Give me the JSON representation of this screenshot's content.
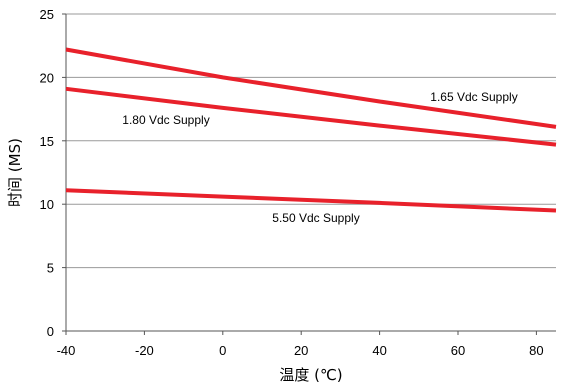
{
  "chart_data": {
    "type": "line",
    "title": "",
    "xlabel": "温度 (℃)",
    "ylabel": "时间 (MS)",
    "xlim": [
      -40,
      85
    ],
    "ylim": [
      0,
      25
    ],
    "xticks": [
      -40,
      -20,
      0,
      20,
      40,
      60,
      80
    ],
    "yticks": [
      0,
      5,
      10,
      15,
      20,
      25
    ],
    "grid": "horizontal",
    "line_color": "#e8212b",
    "series": [
      {
        "name": "1.65 Vdc Supply",
        "x": [
          -40,
          0,
          40,
          85
        ],
        "y": [
          22.2,
          20.0,
          18.1,
          16.1
        ]
      },
      {
        "name": "1.80 Vdc Supply",
        "x": [
          -40,
          0,
          40,
          85
        ],
        "y": [
          19.1,
          17.6,
          16.2,
          14.7
        ]
      },
      {
        "name": "5.50 Vdc Supply",
        "x": [
          -40,
          0,
          40,
          85
        ],
        "y": [
          11.1,
          10.6,
          10.1,
          9.5
        ]
      }
    ]
  }
}
